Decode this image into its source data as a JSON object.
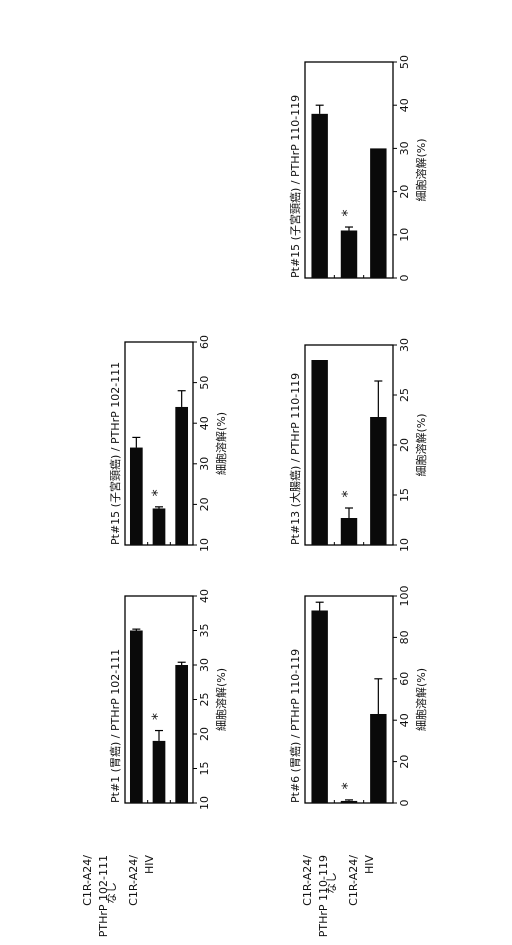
{
  "chart_data": [
    {
      "type": "bar",
      "title": "Pt#1 (胃癌) / PTHrP 102-111",
      "xlabel": "細胞溶解(%)",
      "categories": [
        "なし",
        "C1R-A24/ PTHrP 102-111",
        "C1R-A24/ HIV"
      ],
      "values": [
        35,
        19,
        30
      ],
      "errors": [
        0.2,
        1.5,
        0.4
      ],
      "significance": [
        "",
        "*",
        ""
      ],
      "xlim": [
        10,
        40
      ],
      "ticks": [
        10,
        15,
        20,
        25,
        30,
        35,
        40
      ]
    },
    {
      "type": "bar",
      "title": "Pt#15 (子宮頸癌) / PTHrP 102-111",
      "xlabel": "細胞溶解(%)",
      "categories": [
        "なし",
        "C1R-A24/ PTHrP 102-111",
        "C1R-A24/ HIV"
      ],
      "values": [
        34,
        19,
        44
      ],
      "errors": [
        2.5,
        0.4,
        4
      ],
      "significance": [
        "",
        "*",
        ""
      ],
      "xlim": [
        10,
        60
      ],
      "ticks": [
        10,
        20,
        30,
        40,
        50,
        60
      ]
    },
    {
      "type": "bar",
      "title": "Pt#6 (胃癌) / PTHrP 110-119",
      "xlabel": "細胞溶解(%)",
      "categories": [
        "なし",
        "C1R-A24/ PTHrP 110-119",
        "C1R-A24/ HIV"
      ],
      "values": [
        93,
        1,
        43
      ],
      "errors": [
        4,
        0.5,
        17
      ],
      "significance": [
        "",
        "*",
        ""
      ],
      "xlim": [
        0,
        100
      ],
      "ticks": [
        0,
        20,
        40,
        60,
        80,
        100
      ]
    },
    {
      "type": "bar",
      "title": "Pt#13 (大腸癌) / PTHrP 110-119",
      "xlabel": "細胞溶解(%)",
      "categories": [
        "なし",
        "C1R-A24/ PTHrP 110-119",
        "C1R-A24/ HIV"
      ],
      "values": [
        28.5,
        12.7,
        22.8
      ],
      "errors": [
        0,
        1,
        3.6
      ],
      "significance": [
        "",
        "*",
        ""
      ],
      "xlim": [
        10,
        30
      ],
      "ticks": [
        10,
        15,
        20,
        25,
        30
      ]
    },
    {
      "type": "bar",
      "title": "Pt#15 (子宮頸癌) / PTHrP 110-119",
      "xlabel": "細胞溶解(%)",
      "categories": [
        "なし",
        "C1R-A24/ PTHrP 110-119",
        "C1R-A24/ HIV"
      ],
      "values": [
        38,
        11,
        30
      ],
      "errors": [
        2,
        0.8,
        0
      ],
      "significance": [
        "",
        "*",
        ""
      ],
      "xlim": [
        0,
        50
      ],
      "ticks": [
        0,
        10,
        20,
        30,
        40,
        50
      ]
    }
  ],
  "category_labels": {
    "row1": {
      "c0": "なし",
      "c1a": "C1R-A24/",
      "c1b": "PTHrP 102-111",
      "c2a": "C1R-A24/",
      "c2b": "HIV"
    },
    "row2": {
      "c0": "なし",
      "c1a": "C1R-A24/",
      "c1b": "PTHrP 110-119",
      "c2a": "C1R-A24/",
      "c2b": "HIV"
    }
  }
}
